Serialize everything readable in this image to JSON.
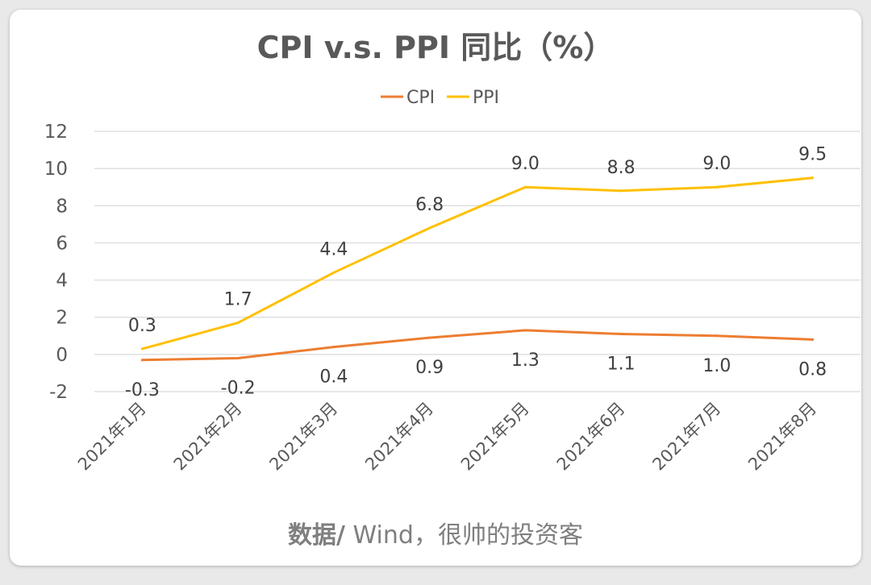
{
  "colors": {
    "cpi": "#ED7D31",
    "ppi": "#FFC000",
    "text": "#595959",
    "grid": "#D9D9D9"
  },
  "chart_data": {
    "type": "line",
    "title": "CPI v.s. PPI 同比（%）",
    "categories": [
      "2021年1月",
      "2021年2月",
      "2021年3月",
      "2021年4月",
      "2021年5月",
      "2021年6月",
      "2021年7月",
      "2021年8月"
    ],
    "series": [
      {
        "name": "CPI",
        "values": [
          -0.3,
          -0.2,
          0.4,
          0.9,
          1.3,
          1.1,
          1.0,
          0.8
        ],
        "labels": [
          "-0.3",
          "-0.2",
          "0.4",
          "0.9",
          "1.3",
          "1.1",
          "1.0",
          "0.8"
        ],
        "label_position": "below"
      },
      {
        "name": "PPI",
        "values": [
          0.3,
          1.7,
          4.4,
          6.8,
          9.0,
          8.8,
          9.0,
          9.5
        ],
        "labels": [
          "0.3",
          "1.7",
          "4.4",
          "6.8",
          "9.0",
          "8.8",
          "9.0",
          "9.5"
        ],
        "label_position": "above"
      }
    ],
    "yticks": [
      "12",
      "10",
      "8",
      "6",
      "4",
      "2",
      "0",
      "-2"
    ],
    "ylim": [
      -2,
      12
    ],
    "xlabel": "",
    "ylabel": "",
    "grid": true,
    "legend": "top-center"
  },
  "source": {
    "bold": "数据/",
    "rest": " Wind，很帅的投资客"
  }
}
